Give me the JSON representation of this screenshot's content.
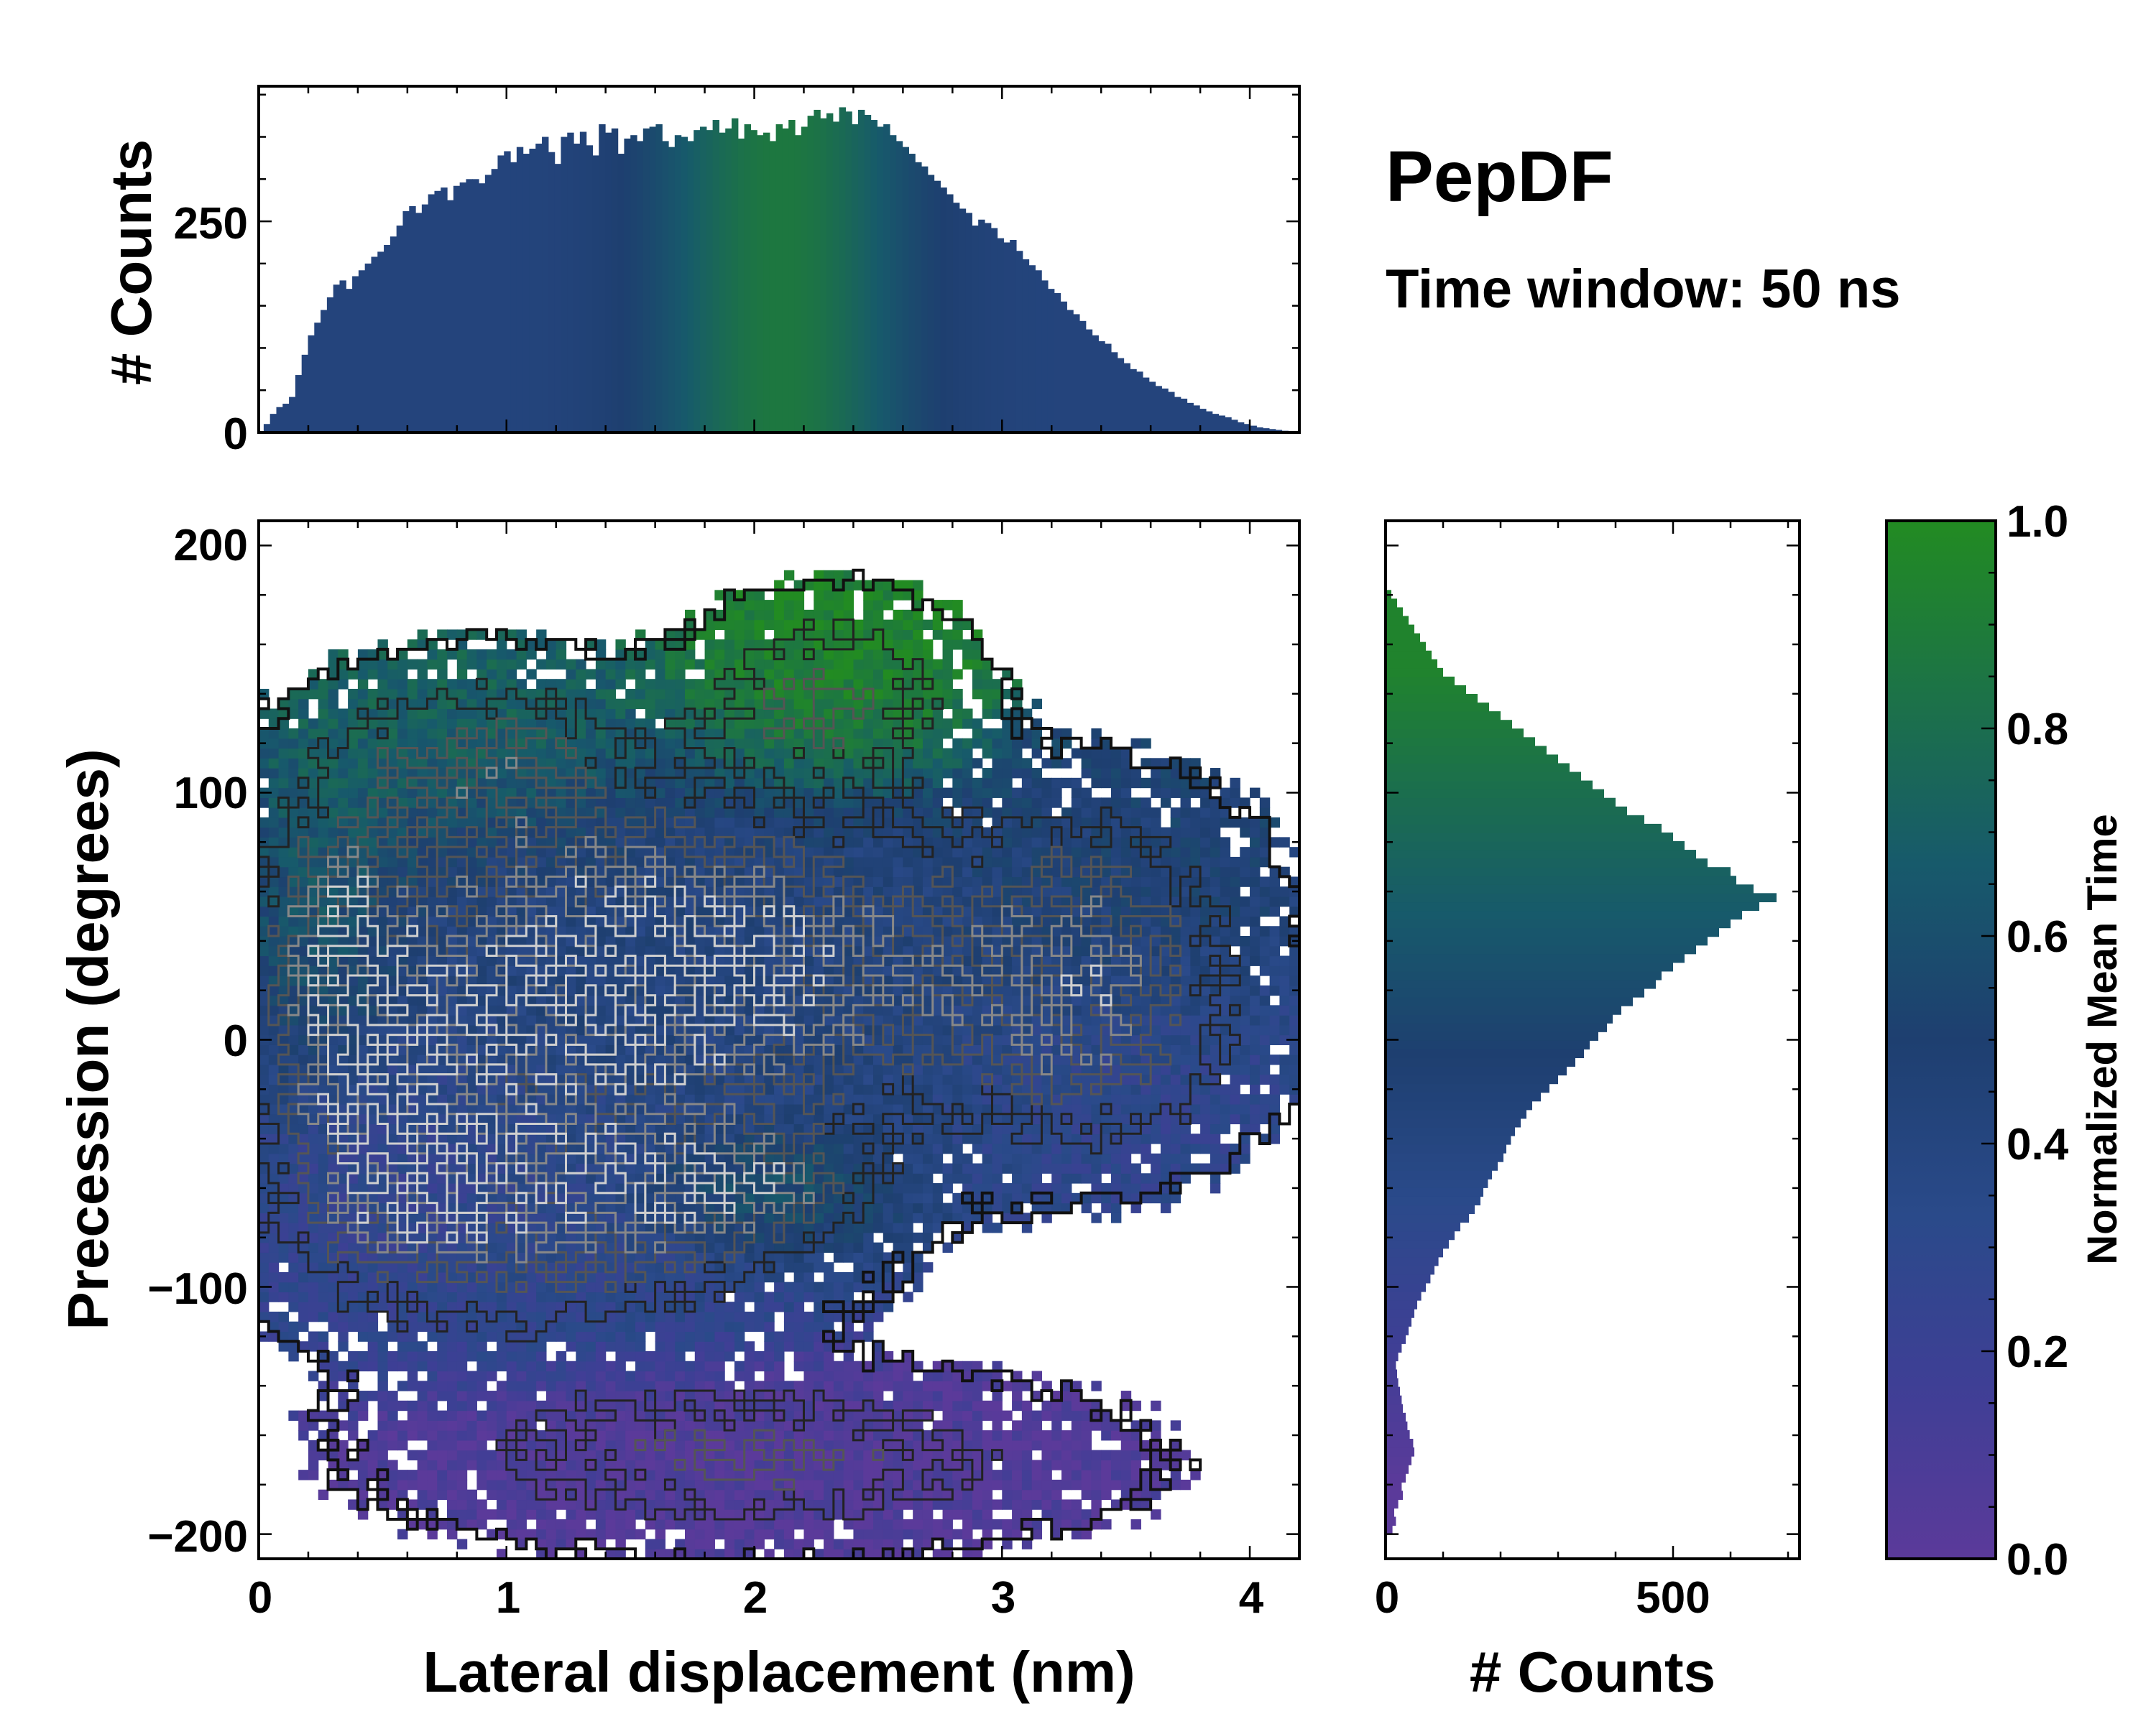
{
  "chart_data": [
    {
      "id": "top-histogram",
      "type": "bar",
      "ylabel": "# Counts",
      "xlim": [
        0,
        4.2
      ],
      "ylim": [
        0,
        410
      ],
      "yticks": [
        0,
        250
      ],
      "x_range": [
        0.02,
        4.18
      ],
      "values": [
        10,
        22,
        30,
        34,
        42,
        68,
        92,
        115,
        130,
        145,
        160,
        175,
        180,
        170,
        185,
        192,
        200,
        208,
        214,
        222,
        232,
        245,
        262,
        268,
        260,
        270,
        282,
        286,
        290,
        275,
        292,
        296,
        300,
        300,
        295,
        305,
        312,
        328,
        333,
        320,
        338,
        330,
        336,
        342,
        350,
        332,
        318,
        350,
        355,
        342,
        356,
        340,
        328,
        365,
        355,
        360,
        330,
        348,
        352,
        345,
        360,
        362,
        365,
        345,
        338,
        352,
        350,
        345,
        358,
        362,
        358,
        370,
        355,
        360,
        372,
        348,
        365,
        358,
        352,
        355,
        345,
        365,
        360,
        370,
        352,
        362,
        375,
        382,
        372,
        378,
        368,
        385,
        380,
        365,
        382,
        376,
        370,
        362,
        365,
        352,
        345,
        338,
        330,
        320,
        315,
        305,
        298,
        290,
        282,
        272,
        265,
        260,
        245,
        252,
        248,
        242,
        230,
        225,
        228,
        215,
        205,
        198,
        192,
        180,
        170,
        165,
        155,
        145,
        140,
        132,
        122,
        115,
        108,
        105,
        95,
        88,
        82,
        75,
        72,
        65,
        60,
        55,
        52,
        48,
        42,
        40,
        35,
        32,
        28,
        25,
        22,
        20,
        18,
        15,
        12,
        10,
        8,
        6,
        5,
        4,
        3,
        2,
        1
      ],
      "colors": [
        "#3b3e8c",
        "#2f4687",
        "#22508a",
        "#1a5880",
        "#175f78",
        "#166e6a",
        "#1d7040",
        "#1f7a35"
      ]
    },
    {
      "id": "main-heatmap",
      "type": "heatmap",
      "xlabel": "Lateral displacement (nm)",
      "ylabel": "Precession (degrees)",
      "xlim": [
        0,
        4.2
      ],
      "ylim": [
        -210,
        210
      ],
      "xticks": [
        0,
        1,
        2,
        3,
        4
      ],
      "yticks": [
        -200,
        -100,
        0,
        100,
        200
      ],
      "clusters": [
        {
          "x": 1.6,
          "y": 30,
          "sx": 1.0,
          "sy": 45,
          "w": 1.0,
          "t": 0.42
        },
        {
          "x": 2.3,
          "y": 140,
          "sx": 0.35,
          "sy": 25,
          "w": 0.55,
          "t": 0.95
        },
        {
          "x": 0.9,
          "y": 115,
          "sx": 0.45,
          "sy": 25,
          "w": 0.5,
          "t": 0.75
        },
        {
          "x": 0.3,
          "y": 40,
          "sx": 0.2,
          "sy": 40,
          "w": 0.45,
          "t": 0.8
        },
        {
          "x": 3.4,
          "y": 50,
          "sx": 0.4,
          "sy": 35,
          "w": 0.45,
          "t": 0.5
        },
        {
          "x": 3.4,
          "y": -10,
          "sx": 0.45,
          "sy": 30,
          "w": 0.4,
          "t": 0.25
        },
        {
          "x": 1.2,
          "y": -70,
          "sx": 0.7,
          "sy": 35,
          "w": 0.7,
          "t": 0.3
        },
        {
          "x": 2.0,
          "y": -60,
          "sx": 0.3,
          "sy": 15,
          "w": 0.4,
          "t": 0.85
        },
        {
          "x": 2.0,
          "y": -170,
          "sx": 0.9,
          "sy": 22,
          "w": 0.55,
          "t": 0.05
        },
        {
          "x": 0.5,
          "y": -40,
          "sx": 0.3,
          "sy": 40,
          "w": 0.5,
          "t": 0.2
        }
      ]
    },
    {
      "id": "right-histogram",
      "type": "bar",
      "orientation": "horizontal",
      "xlabel": "# Counts",
      "xlim": [
        0,
        720
      ],
      "ylim": [
        -210,
        210
      ],
      "xticks": [
        0,
        500
      ],
      "y_range": [
        -200,
        182
      ],
      "values": [
        12,
        18,
        15,
        22,
        30,
        28,
        35,
        40,
        45,
        50,
        48,
        42,
        38,
        35,
        30,
        28,
        25,
        22,
        20,
        18,
        22,
        28,
        35,
        40,
        45,
        50,
        55,
        62,
        70,
        78,
        85,
        92,
        100,
        110,
        120,
        130,
        145,
        155,
        165,
        170,
        178,
        185,
        195,
        205,
        210,
        218,
        225,
        235,
        245,
        255,
        270,
        285,
        300,
        315,
        330,
        345,
        355,
        370,
        385,
        395,
        410,
        430,
        450,
        470,
        480,
        500,
        520,
        540,
        560,
        580,
        600,
        620,
        650,
        680,
        640,
        610,
        600,
        560,
        540,
        520,
        500,
        480,
        450,
        420,
        400,
        380,
        360,
        340,
        320,
        300,
        280,
        260,
        240,
        220,
        200,
        180,
        160,
        140,
        120,
        100,
        90,
        80,
        70,
        60,
        50,
        40,
        30,
        20,
        10
      ],
      "colors": [
        "#5b3a9a",
        "#4a3f96",
        "#33468f",
        "#243f80",
        "#1d3a6f",
        "#164a68",
        "#1a6f5a",
        "#1f7f38"
      ]
    }
  ],
  "annotations": {
    "title": "PepDF",
    "subtitle": "Time window: 50 ns"
  },
  "colorbar": {
    "label": "Normalized Mean Time",
    "range": [
      0.0,
      1.0
    ],
    "ticks": [
      "0.0",
      "0.2",
      "0.4",
      "0.6",
      "0.8",
      "1.0"
    ],
    "stops": [
      "#5b3a9a",
      "#3e3f95",
      "#2a4a8a",
      "#1e3f70",
      "#175a6b",
      "#1c7248",
      "#228b22"
    ]
  }
}
